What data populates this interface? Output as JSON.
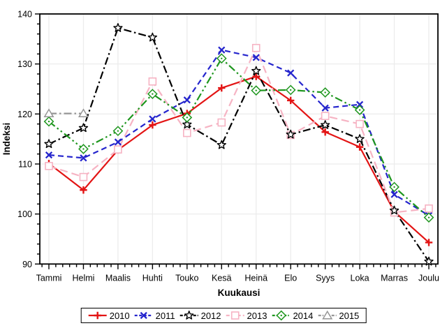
{
  "chart_data": {
    "type": "line",
    "title": "",
    "xlabel": "Kuukausi",
    "ylabel": "Indeksi",
    "ylim": [
      90,
      140
    ],
    "yticks": [
      90,
      100,
      110,
      120,
      130,
      140
    ],
    "y_minor_tick_step": 2,
    "grid": true,
    "legend_position": "bottom",
    "frame": true,
    "grid_color": "#ececec",
    "categories": [
      "Tammi",
      "Helmi",
      "Maalis",
      "Huhti",
      "Touko",
      "Kesä",
      "Heinä",
      "Elo",
      "Syys",
      "Loka",
      "Marras",
      "Joulu"
    ],
    "series": [
      {
        "name": "2010",
        "color": "#e31414",
        "line_style": "solid",
        "marker": "plus",
        "values": [
          110.1,
          104.8,
          112.8,
          117.8,
          120.1,
          125.2,
          127.5,
          122.7,
          116.4,
          113.4,
          100.5,
          94.3
        ]
      },
      {
        "name": "2011",
        "color": "#2525cd",
        "line_style": "dashed",
        "marker": "x",
        "values": [
          111.8,
          111.2,
          114.4,
          119.0,
          122.8,
          132.8,
          131.3,
          128.2,
          121.2,
          121.9,
          103.9,
          99.7
        ]
      },
      {
        "name": "2012",
        "color": "#000000",
        "line_style": "dash-dot",
        "marker": "star",
        "values": [
          114.0,
          117.2,
          137.2,
          135.3,
          117.9,
          113.8,
          128.6,
          115.9,
          117.8,
          115.0,
          100.7,
          90.5
        ]
      },
      {
        "name": "2013",
        "color": "#f6b3c3",
        "line_style": "long-dash",
        "marker": "square",
        "values": [
          109.6,
          107.4,
          112.9,
          126.5,
          116.2,
          118.3,
          133.2,
          115.8,
          119.6,
          118.0,
          100.3,
          101.1
        ]
      },
      {
        "name": "2014",
        "color": "#1e961e",
        "line_style": "dash-dot-dot",
        "marker": "diamond",
        "values": [
          118.5,
          113.0,
          116.6,
          124.0,
          119.3,
          131.1,
          124.7,
          124.8,
          124.3,
          120.8,
          105.4,
          99.3
        ]
      },
      {
        "name": "2015",
        "color": "#969696",
        "line_style": "dash-dot",
        "marker": "triangle",
        "values": [
          120.1,
          120.1,
          null,
          null,
          null,
          null,
          null,
          null,
          null,
          null,
          null,
          null
        ]
      }
    ]
  }
}
